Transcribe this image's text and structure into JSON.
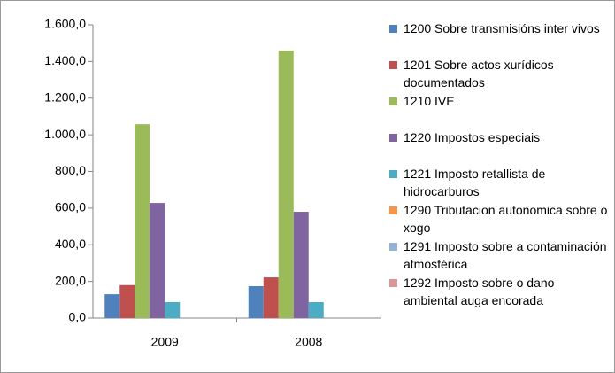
{
  "chart_data": {
    "type": "bar",
    "categories": [
      "2009",
      "2008"
    ],
    "series": [
      {
        "name": "1200 Sobre transmisións inter vivos",
        "color": "#4f81bd",
        "values": [
          130,
          174
        ]
      },
      {
        "name": "1201 Sobre actos xurídicos documentados",
        "color": "#c0504d",
        "values": [
          180,
          222
        ]
      },
      {
        "name": "1210 IVE",
        "color": "#9bbb59",
        "values": [
          1058,
          1459
        ]
      },
      {
        "name": "1220 Impostos especiais",
        "color": "#8064a2",
        "values": [
          628,
          580
        ]
      },
      {
        "name": "1221 Imposto retallista de hidrocarburos",
        "color": "#4bacc6",
        "values": [
          87,
          87
        ]
      },
      {
        "name": "1290 Tributacion autonomica sobre o xogo",
        "color": "#f79646",
        "values": [
          0,
          0
        ]
      },
      {
        "name": "1291 Imposto sobre a contaminación atmosférica",
        "color": "#95b3d7",
        "values": [
          0,
          0
        ]
      },
      {
        "name": "1292 Imposto sobre o dano ambiental auga encorada",
        "color": "#d99694",
        "values": [
          0,
          0
        ]
      }
    ],
    "ylim": [
      0,
      1600
    ],
    "yticks": [
      {
        "value": 0,
        "label": "0,0"
      },
      {
        "value": 200,
        "label": "200,0"
      },
      {
        "value": 400,
        "label": "400,0"
      },
      {
        "value": 600,
        "label": "600,0"
      },
      {
        "value": 800,
        "label": "800,0"
      },
      {
        "value": 1000,
        "label": "1.000,0"
      },
      {
        "value": 1200,
        "label": "1.200,0"
      },
      {
        "value": 1400,
        "label": "1.400,0"
      },
      {
        "value": 1600,
        "label": "1.600,0"
      }
    ],
    "legend": "right"
  }
}
